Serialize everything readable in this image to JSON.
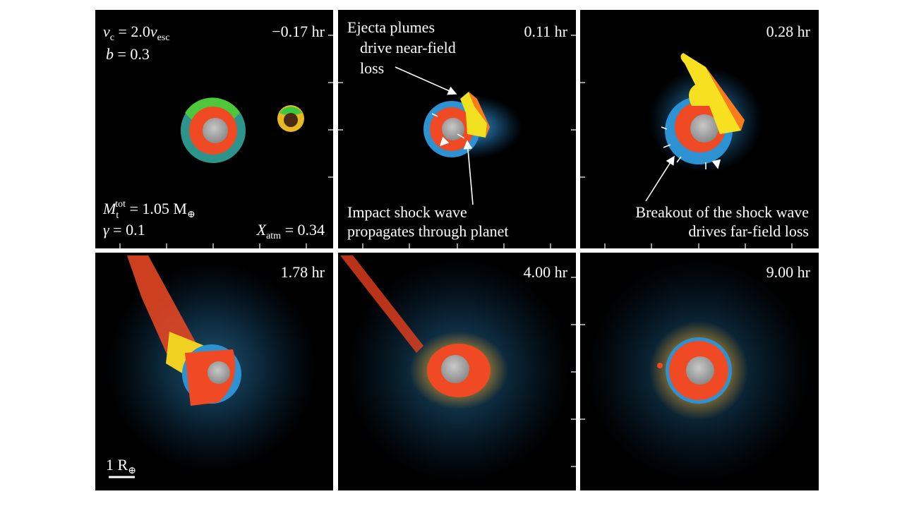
{
  "panels": [
    {
      "time": "−0.17 hr"
    },
    {
      "time": "0.11 hr"
    },
    {
      "time": "0.28 hr"
    },
    {
      "time": "1.78 hr"
    },
    {
      "time": "4.00 hr"
    },
    {
      "time": "9.00 hr"
    }
  ],
  "parameters": {
    "vc": [
      "v",
      "c",
      " = 2.0",
      "v",
      "esc"
    ],
    "b": [
      "b",
      " = 0.3"
    ],
    "mass": [
      "M",
      "t",
      "tot",
      " = 1.05 M",
      "⊕"
    ],
    "gamma": [
      "γ",
      " = 0.1"
    ],
    "xatm": [
      "X",
      "atm",
      " = 0.34"
    ]
  },
  "annotations": {
    "ejecta": [
      "Ejecta plumes",
      "drive near-field",
      "loss"
    ],
    "impact": [
      "Impact shock wave",
      "propagates through planet"
    ],
    "breakout": [
      "Breakout of the shock wave",
      "drives far-field loss"
    ]
  },
  "scale_bar": [
    "1 R",
    "⊕"
  ]
}
